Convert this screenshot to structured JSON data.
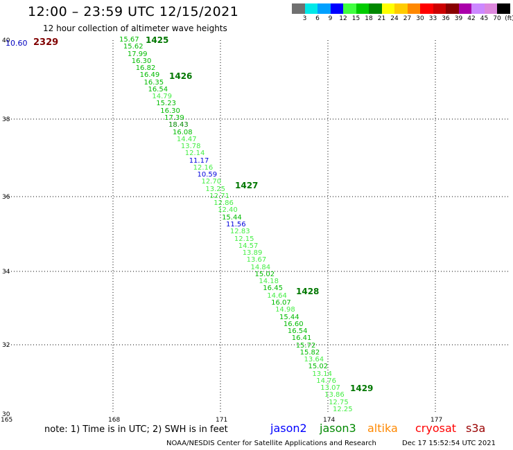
{
  "title": "12:00 – 23:59 UTC 12/15/2021",
  "subtitle": "12 hour collection of altimeter wave heights",
  "colorbar": {
    "unit_label": "(ft)",
    "colors": [
      "#707070",
      "#00e8e8",
      "#00a0ff",
      "#0000ff",
      "#40ff40",
      "#00cc00",
      "#008800",
      "#ffff00",
      "#ffcc00",
      "#ff8800",
      "#ff0000",
      "#cc0000",
      "#880000",
      "#aa00aa",
      "#cc88ff",
      "#dd88dd",
      "#000000"
    ],
    "labels": [
      "3",
      "6",
      "9",
      "12",
      "15",
      "18",
      "21",
      "24",
      "27",
      "30",
      "33",
      "36",
      "39",
      "42",
      "45",
      "70"
    ]
  },
  "axes": {
    "lat_labels": [
      "40",
      "38",
      "36",
      "34",
      "32",
      "30"
    ],
    "lon_labels": [
      "165",
      "168",
      "171",
      "174",
      "177"
    ]
  },
  "corner_value": {
    "text": "10.60",
    "color": "#0000c0"
  },
  "corner_rev": {
    "text": "2329",
    "color": "#800000"
  },
  "track": {
    "values": [
      {
        "t": "15.67",
        "c": "#00bb00"
      },
      {
        "t": "15.62",
        "c": "#00bb00"
      },
      {
        "t": "17.99",
        "c": "#00bb00"
      },
      {
        "t": "16.30",
        "c": "#00bb00"
      },
      {
        "t": "16.82",
        "c": "#00bb00"
      },
      {
        "t": "16.49",
        "c": "#00bb00"
      },
      {
        "t": "16.35",
        "c": "#00bb00"
      },
      {
        "t": "16.54",
        "c": "#00bb00"
      },
      {
        "t": "14.79",
        "c": "#44ee44"
      },
      {
        "t": "15.23",
        "c": "#00bb00"
      },
      {
        "t": "16.30",
        "c": "#00bb00"
      },
      {
        "t": "17.39",
        "c": "#00bb00"
      },
      {
        "t": "18.43",
        "c": "#008800"
      },
      {
        "t": "16.08",
        "c": "#00bb00"
      },
      {
        "t": "14.47",
        "c": "#44ee44"
      },
      {
        "t": "13.78",
        "c": "#44ee44"
      },
      {
        "t": "12.14",
        "c": "#44ee44"
      },
      {
        "t": "11.17",
        "c": "#0000dd"
      },
      {
        "t": "12.16",
        "c": "#44ee44"
      },
      {
        "t": "10.59",
        "c": "#0000dd"
      },
      {
        "t": "12.70",
        "c": "#44ee44"
      },
      {
        "t": "13.25",
        "c": "#44ee44"
      },
      {
        "t": "12.71",
        "c": "#44ee44"
      },
      {
        "t": "12.86",
        "c": "#44ee44"
      },
      {
        "t": "12.40",
        "c": "#44ee44"
      },
      {
        "t": "15.44",
        "c": "#00bb00"
      },
      {
        "t": "11.56",
        "c": "#0000dd"
      },
      {
        "t": "12.83",
        "c": "#44ee44"
      },
      {
        "t": "12.15",
        "c": "#44ee44"
      },
      {
        "t": "14.57",
        "c": "#44ee44"
      },
      {
        "t": "13.89",
        "c": "#44ee44"
      },
      {
        "t": "13.67",
        "c": "#44ee44"
      },
      {
        "t": "14.84",
        "c": "#44ee44"
      },
      {
        "t": "15.02",
        "c": "#00bb00"
      },
      {
        "t": "14.18",
        "c": "#44ee44"
      },
      {
        "t": "16.45",
        "c": "#00bb00"
      },
      {
        "t": "14.64",
        "c": "#44ee44"
      },
      {
        "t": "16.07",
        "c": "#00bb00"
      },
      {
        "t": "14.98",
        "c": "#44ee44"
      },
      {
        "t": "15.44",
        "c": "#00bb00"
      },
      {
        "t": "16.60",
        "c": "#00bb00"
      },
      {
        "t": "16.54",
        "c": "#00bb00"
      },
      {
        "t": "16.41",
        "c": "#00bb00"
      },
      {
        "t": "15.72",
        "c": "#00bb00"
      },
      {
        "t": "15.82",
        "c": "#00bb00"
      },
      {
        "t": "13.64",
        "c": "#44ee44"
      },
      {
        "t": "15.02",
        "c": "#00bb00"
      },
      {
        "t": "13.14",
        "c": "#44ee44"
      },
      {
        "t": "14.76",
        "c": "#44ee44"
      },
      {
        "t": "13.07",
        "c": "#44ee44"
      },
      {
        "t": "13.86",
        "c": "#44ee44"
      },
      {
        "t": "12.75",
        "c": "#44ee44"
      },
      {
        "t": "12.25",
        "c": "#44ee44"
      }
    ],
    "rev_labels": [
      "1425",
      "1426",
      "1427",
      "1428",
      "1429"
    ],
    "rev_color": "#007700"
  },
  "note": "note: 1) Time is in UTC; 2) SWH is in feet",
  "satellites": [
    {
      "name": "jason2",
      "color": "#0000ff"
    },
    {
      "name": "jason3",
      "color": "#008800"
    },
    {
      "name": "altika",
      "color": "#ff8800"
    },
    {
      "name": "cryosat",
      "color": "#ff0000"
    },
    {
      "name": "s3a",
      "color": "#990000"
    }
  ],
  "footer_left": "NOAA/NESDIS Center for Satellite Applications and Research",
  "footer_right": "Dec 17 15:52:54 UTC 2021"
}
